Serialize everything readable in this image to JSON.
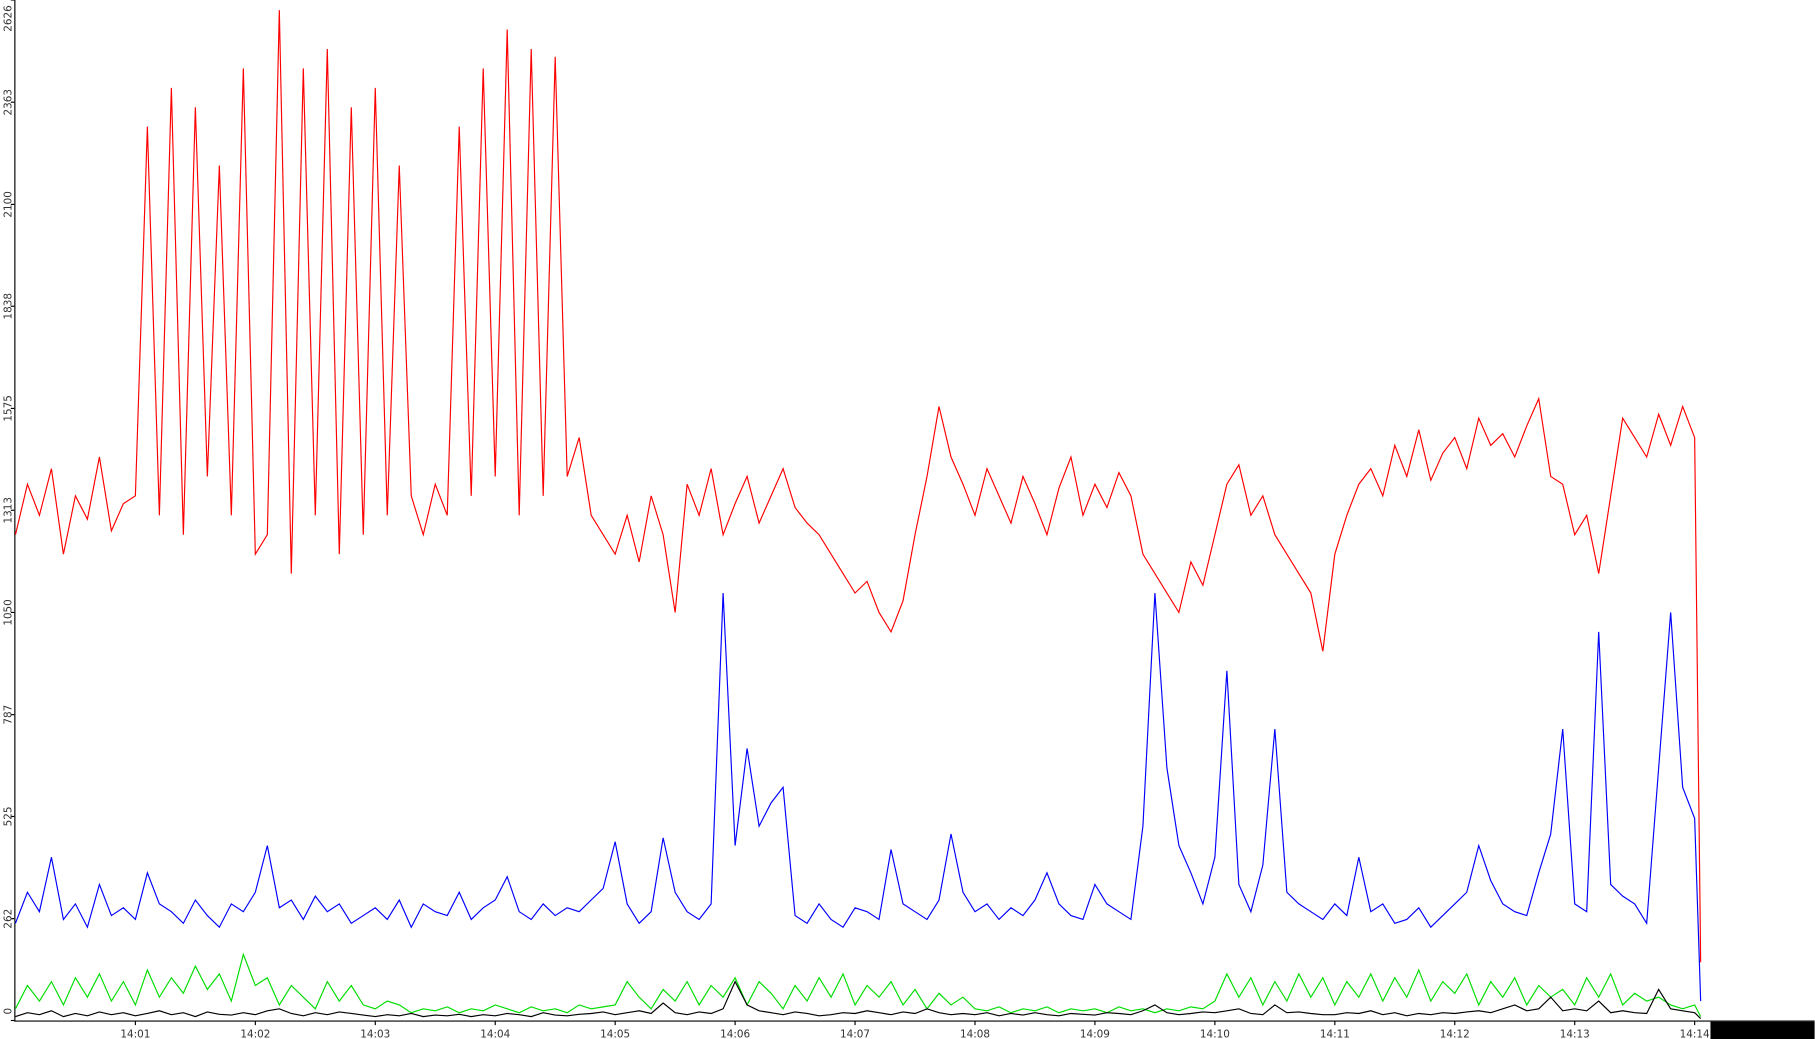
{
  "chart_data": {
    "type": "line",
    "x": [
      0,
      0.1,
      0.2,
      0.3,
      0.4,
      0.5,
      0.6,
      0.7,
      0.8,
      0.9,
      1,
      1.1,
      1.2,
      1.3,
      1.4,
      1.5,
      1.6,
      1.7,
      1.8,
      1.9,
      2,
      2.1,
      2.2,
      2.3,
      2.4,
      2.5,
      2.6,
      2.7,
      2.8,
      2.9,
      3,
      3.1,
      3.2,
      3.3,
      3.4,
      3.5,
      3.6,
      3.7,
      3.8,
      3.9,
      4,
      4.1,
      4.2,
      4.3,
      4.4,
      4.5,
      4.6,
      4.7,
      4.8,
      4.9,
      5,
      5.1,
      5.2,
      5.3,
      5.4,
      5.5,
      5.6,
      5.7,
      5.8,
      5.9,
      6,
      6.1,
      6.2,
      6.3,
      6.4,
      6.5,
      6.6,
      6.7,
      6.8,
      6.9,
      7,
      7.1,
      7.2,
      7.3,
      7.4,
      7.5,
      7.6,
      7.7,
      7.8,
      7.9,
      8,
      8.1,
      8.2,
      8.3,
      8.4,
      8.5,
      8.6,
      8.7,
      8.8,
      8.9,
      9,
      9.1,
      9.2,
      9.3,
      9.4,
      9.5,
      9.6,
      9.7,
      9.8,
      9.9,
      10,
      10.1,
      10.2,
      10.3,
      10.4,
      10.5,
      10.6,
      10.7,
      10.8,
      10.9,
      11,
      11.1,
      11.2,
      11.3,
      11.4,
      11.5,
      11.6,
      11.7,
      11.8,
      11.9,
      12,
      12.1,
      12.2,
      12.3,
      12.4,
      12.5,
      12.6,
      12.7,
      12.8,
      12.9,
      13,
      13.1,
      13.2,
      13.3,
      13.4,
      13.5,
      13.6,
      13.7,
      13.8,
      13.9,
      14,
      14.05
    ],
    "series": [
      {
        "color": "#ff0000",
        "values": [
          1250,
          1380,
          1300,
          1420,
          1200,
          1350,
          1290,
          1450,
          1260,
          1330,
          1350,
          2300,
          1300,
          2400,
          1250,
          2350,
          1400,
          2200,
          1300,
          2450,
          1200,
          1250,
          2600,
          1150,
          2450,
          1300,
          2500,
          1200,
          2350,
          1250,
          2400,
          1300,
          2200,
          1350,
          1250,
          1380,
          1300,
          2300,
          1350,
          2450,
          1400,
          2550,
          1300,
          2500,
          1350,
          2480,
          1400,
          1500,
          1300,
          1250,
          1200,
          1300,
          1180,
          1350,
          1250,
          1050,
          1380,
          1300,
          1420,
          1250,
          1330,
          1400,
          1280,
          1350,
          1420,
          1320,
          1280,
          1250,
          1200,
          1150,
          1100,
          1130,
          1050,
          1000,
          1080,
          1250,
          1400,
          1580,
          1450,
          1380,
          1300,
          1420,
          1350,
          1280,
          1400,
          1330,
          1250,
          1370,
          1450,
          1300,
          1380,
          1320,
          1410,
          1350,
          1200,
          1150,
          1100,
          1050,
          1180,
          1120,
          1250,
          1380,
          1430,
          1300,
          1350,
          1250,
          1200,
          1150,
          1100,
          950,
          1200,
          1300,
          1380,
          1420,
          1350,
          1480,
          1400,
          1520,
          1390,
          1460,
          1500,
          1420,
          1550,
          1480,
          1510,
          1450,
          1530,
          1600,
          1400,
          1380,
          1250,
          1300,
          1150,
          1350,
          1550,
          1500,
          1450,
          1560,
          1480,
          1580,
          1500,
          150
        ]
      },
      {
        "color": "#0000ff",
        "values": [
          250,
          330,
          280,
          420,
          260,
          300,
          240,
          350,
          270,
          290,
          260,
          380,
          300,
          280,
          250,
          310,
          270,
          240,
          300,
          280,
          330,
          450,
          290,
          310,
          260,
          320,
          280,
          300,
          250,
          270,
          290,
          260,
          310,
          240,
          300,
          280,
          270,
          330,
          260,
          290,
          310,
          370,
          280,
          260,
          300,
          270,
          290,
          280,
          310,
          340,
          460,
          300,
          250,
          280,
          470,
          330,
          280,
          260,
          300,
          1100,
          450,
          700,
          500,
          560,
          600,
          270,
          250,
          300,
          260,
          240,
          290,
          280,
          260,
          440,
          300,
          280,
          260,
          310,
          480,
          330,
          280,
          300,
          260,
          290,
          270,
          310,
          380,
          300,
          270,
          260,
          350,
          300,
          280,
          260,
          500,
          1100,
          650,
          450,
          380,
          300,
          420,
          900,
          350,
          280,
          400,
          750,
          330,
          300,
          280,
          260,
          300,
          270,
          420,
          280,
          300,
          250,
          260,
          290,
          240,
          270,
          300,
          330,
          450,
          360,
          300,
          280,
          270,
          380,
          480,
          750,
          300,
          280,
          1000,
          350,
          320,
          300,
          250,
          650,
          1050,
          600,
          520,
          50
        ]
      },
      {
        "color": "#00dd00",
        "values": [
          30,
          90,
          50,
          100,
          40,
          110,
          60,
          120,
          50,
          100,
          40,
          130,
          60,
          110,
          70,
          140,
          80,
          120,
          50,
          170,
          90,
          110,
          40,
          90,
          60,
          30,
          100,
          50,
          90,
          40,
          30,
          50,
          40,
          20,
          30,
          25,
          35,
          20,
          30,
          25,
          40,
          30,
          20,
          35,
          25,
          30,
          20,
          40,
          30,
          35,
          40,
          100,
          60,
          30,
          80,
          50,
          100,
          40,
          90,
          60,
          110,
          40,
          100,
          70,
          30,
          90,
          50,
          110,
          60,
          120,
          40,
          90,
          60,
          100,
          40,
          80,
          30,
          70,
          40,
          60,
          30,
          25,
          35,
          20,
          30,
          25,
          35,
          20,
          30,
          25,
          30,
          20,
          35,
          25,
          30,
          20,
          30,
          25,
          35,
          30,
          50,
          120,
          60,
          110,
          40,
          100,
          50,
          120,
          60,
          110,
          40,
          100,
          60,
          120,
          50,
          110,
          60,
          130,
          50,
          100,
          70,
          120,
          40,
          100,
          60,
          110,
          40,
          90,
          60,
          80,
          40,
          110,
          60,
          120,
          40,
          70,
          50,
          60,
          40,
          30,
          40,
          10
        ]
      },
      {
        "color": "#000000",
        "values": [
          10,
          20,
          15,
          25,
          10,
          18,
          12,
          22,
          15,
          20,
          12,
          18,
          25,
          15,
          20,
          10,
          22,
          16,
          14,
          20,
          15,
          25,
          30,
          18,
          12,
          20,
          15,
          22,
          18,
          14,
          10,
          15,
          12,
          18,
          10,
          14,
          12,
          16,
          10,
          15,
          12,
          18,
          15,
          10,
          20,
          14,
          12,
          16,
          18,
          22,
          15,
          20,
          25,
          18,
          45,
          20,
          15,
          22,
          18,
          30,
          100,
          40,
          25,
          20,
          15,
          22,
          18,
          12,
          15,
          20,
          18,
          25,
          20,
          15,
          22,
          18,
          30,
          20,
          15,
          18,
          15,
          20,
          12,
          18,
          14,
          20,
          15,
          12,
          18,
          16,
          14,
          20,
          18,
          15,
          25,
          40,
          20,
          15,
          18,
          22,
          20,
          25,
          30,
          18,
          15,
          40,
          20,
          22,
          18,
          15,
          15,
          20,
          18,
          25,
          15,
          20,
          12,
          18,
          15,
          20,
          18,
          22,
          25,
          20,
          30,
          40,
          25,
          30,
          60,
          25,
          30,
          25,
          50,
          20,
          25,
          20,
          18,
          80,
          30,
          25,
          20,
          5
        ]
      }
    ],
    "xlim": [
      0,
      15
    ],
    "ylim": [
      0,
      2626
    ],
    "yticks": [
      0,
      262,
      525,
      787,
      1050,
      1313,
      1575,
      1838,
      2100,
      2363,
      2626
    ],
    "xticks": [
      {
        "value": 1,
        "label": "14:01"
      },
      {
        "value": 2,
        "label": "14:02"
      },
      {
        "value": 3,
        "label": "14:03"
      },
      {
        "value": 4,
        "label": "14:04"
      },
      {
        "value": 5,
        "label": "14:05"
      },
      {
        "value": 6,
        "label": "14:06"
      },
      {
        "value": 7,
        "label": "14:07"
      },
      {
        "value": 8,
        "label": "14:08"
      },
      {
        "value": 9,
        "label": "14:09"
      },
      {
        "value": 10,
        "label": "14:10"
      },
      {
        "value": 11,
        "label": "14:11"
      },
      {
        "value": 12,
        "label": "14:12"
      },
      {
        "value": 13,
        "label": "14:13"
      },
      {
        "value": 14,
        "label": "14:14"
      }
    ]
  }
}
